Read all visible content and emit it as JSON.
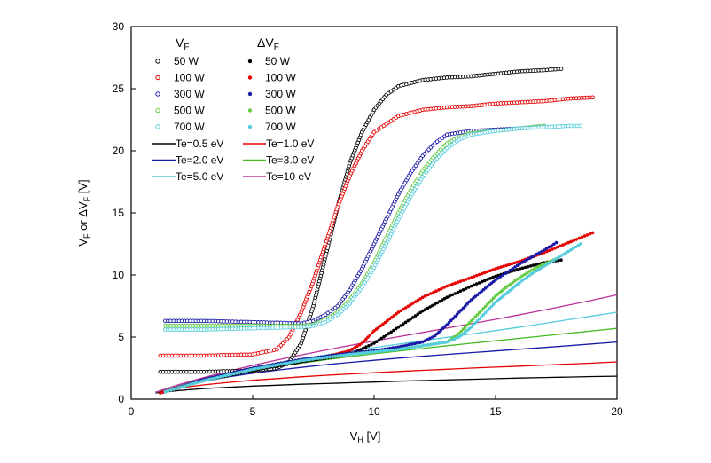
{
  "chart_data": {
    "type": "scatter",
    "title": "",
    "xlabel": {
      "main": "V",
      "sub": "H",
      "unit": " [V]"
    },
    "ylabel": {
      "p1": "V",
      "s1": "F",
      "p2": " or ",
      "p3": "ΔV",
      "s2": "F",
      "p4": " [V]"
    },
    "xlim": [
      0,
      20
    ],
    "ylim": [
      0,
      30
    ],
    "xticks": [
      "0",
      "5",
      "10",
      "15",
      "20"
    ],
    "yticks": [
      "0",
      "5",
      "10",
      "15",
      "20",
      "25",
      "30"
    ],
    "grid": false,
    "legend_placement": "top-left",
    "legend": {
      "vf_head": {
        "main": "V",
        "sub": "F"
      },
      "dvf_head": {
        "main": "ΔV",
        "sub": "F"
      }
    },
    "series": [
      {
        "name": "50 W",
        "group": "VF",
        "marker": "open-circle",
        "color": "#000000",
        "x": [
          1.2,
          3,
          5,
          6,
          6.5,
          7,
          7.5,
          8,
          8.5,
          9,
          9.5,
          10,
          10.5,
          11,
          12,
          13,
          14,
          15,
          16,
          17,
          17.7
        ],
        "y": [
          2.2,
          2.2,
          2.3,
          2.5,
          3.0,
          4.5,
          7.5,
          11.5,
          15.5,
          19.0,
          21.5,
          23.3,
          24.5,
          25.2,
          25.7,
          25.9,
          26.0,
          26.2,
          26.4,
          26.5,
          26.6
        ]
      },
      {
        "name": "100 W",
        "group": "VF",
        "marker": "open-circle",
        "color": "#e60000",
        "x": [
          1.2,
          3,
          5,
          6,
          6.5,
          7,
          7.5,
          8,
          8.5,
          9,
          9.5,
          10,
          11,
          12,
          13,
          14,
          15,
          16,
          17,
          18,
          19
        ],
        "y": [
          3.5,
          3.5,
          3.6,
          4.0,
          5.0,
          7.0,
          9.5,
          12.5,
          15.5,
          18.0,
          20.0,
          21.5,
          22.8,
          23.3,
          23.5,
          23.6,
          23.8,
          23.9,
          24.0,
          24.2,
          24.3
        ]
      },
      {
        "name": "300 W",
        "group": "VF",
        "marker": "open-circle",
        "color": "#1a1aa6",
        "x": [
          1.4,
          3,
          5,
          7,
          7.5,
          8,
          8.5,
          9,
          9.5,
          10,
          10.5,
          11,
          11.5,
          12,
          12.5,
          13,
          14,
          15,
          16,
          17
        ],
        "y": [
          6.3,
          6.3,
          6.2,
          6.1,
          6.3,
          6.8,
          7.5,
          8.8,
          10.5,
          12.5,
          14.5,
          16.5,
          18.2,
          19.6,
          20.6,
          21.3,
          21.6,
          21.7,
          21.8,
          22.0
        ]
      },
      {
        "name": "500 W",
        "group": "VF",
        "marker": "open-circle",
        "color": "#66cc44",
        "x": [
          1.4,
          3,
          5,
          7,
          7.5,
          8,
          8.5,
          9,
          9.5,
          10,
          10.5,
          11,
          11.5,
          12,
          12.5,
          13,
          13.5,
          14,
          15,
          16,
          17
        ],
        "y": [
          5.9,
          5.9,
          5.9,
          5.9,
          6.0,
          6.4,
          7.0,
          8.0,
          9.3,
          11.0,
          13.0,
          15.0,
          16.8,
          18.4,
          19.6,
          20.6,
          21.1,
          21.4,
          21.6,
          21.8,
          22.0
        ]
      },
      {
        "name": "700 W",
        "group": "VF",
        "marker": "open-circle",
        "color": "#55ccdd",
        "x": [
          1.4,
          3,
          5,
          7,
          7.5,
          8,
          8.5,
          9,
          9.5,
          10,
          10.5,
          11,
          11.5,
          12,
          12.5,
          13,
          13.5,
          14,
          15,
          16,
          17,
          18,
          18.5
        ],
        "y": [
          5.6,
          5.6,
          5.7,
          5.8,
          5.9,
          6.2,
          6.8,
          7.7,
          9.0,
          10.6,
          12.5,
          14.5,
          16.3,
          17.9,
          19.2,
          20.2,
          20.9,
          21.3,
          21.6,
          21.8,
          21.9,
          22.0,
          22.0
        ]
      },
      {
        "name": "50 W",
        "group": "dVF",
        "marker": "filled-circle",
        "color": "#000000",
        "x": [
          1.2,
          3,
          5,
          7,
          8,
          9,
          10,
          11,
          12,
          13,
          14,
          15,
          16,
          17,
          17.7
        ],
        "y": [
          0.5,
          1.5,
          2.3,
          3.0,
          3.3,
          3.6,
          4.5,
          5.8,
          7.1,
          8.2,
          9.1,
          9.9,
          10.5,
          11.0,
          11.2
        ]
      },
      {
        "name": "100 W",
        "group": "dVF",
        "marker": "filled-circle",
        "color": "#e60000",
        "x": [
          1.2,
          3,
          5,
          7,
          8,
          9,
          9.5,
          10,
          11,
          12,
          13,
          14,
          15,
          16,
          17,
          18,
          19
        ],
        "y": [
          0.5,
          1.6,
          2.5,
          3.1,
          3.4,
          3.9,
          4.5,
          5.5,
          7.0,
          8.2,
          9.1,
          9.8,
          10.5,
          11.1,
          11.8,
          12.6,
          13.4
        ]
      },
      {
        "name": "300 W",
        "group": "dVF",
        "marker": "filled-circle",
        "color": "#1a1aa6",
        "x": [
          1.4,
          3,
          5,
          7,
          9,
          10,
          11,
          12,
          12.5,
          13,
          13.5,
          14,
          14.5,
          15,
          16,
          17,
          17.5
        ],
        "y": [
          0.6,
          1.6,
          2.5,
          3.2,
          3.7,
          3.9,
          4.2,
          4.6,
          5.1,
          6.0,
          7.0,
          8.0,
          8.8,
          9.6,
          10.9,
          12.0,
          12.6
        ]
      },
      {
        "name": "500 W",
        "group": "dVF",
        "marker": "filled-circle",
        "color": "#66cc44",
        "x": [
          1.4,
          3,
          5,
          7,
          9,
          11,
          12,
          13,
          13.5,
          14,
          14.5,
          15,
          15.5,
          16,
          16.5,
          17,
          17.5
        ],
        "y": [
          0.6,
          1.5,
          2.4,
          3.1,
          3.6,
          4.0,
          4.3,
          4.6,
          5.3,
          6.3,
          7.3,
          8.3,
          9.1,
          9.8,
          10.4,
          10.9,
          11.3
        ]
      },
      {
        "name": "700 W",
        "group": "dVF",
        "marker": "filled-circle",
        "color": "#55ccdd",
        "x": [
          1.4,
          3,
          5,
          7,
          9,
          11,
          12,
          13,
          13.5,
          14,
          14.5,
          15,
          15.5,
          16,
          16.5,
          17,
          17.5,
          18,
          18.5
        ],
        "y": [
          0.6,
          1.5,
          2.4,
          3.1,
          3.6,
          4.0,
          4.3,
          4.6,
          5.0,
          5.8,
          6.8,
          7.8,
          8.6,
          9.4,
          10.1,
          10.7,
          11.3,
          11.9,
          12.5
        ]
      }
    ],
    "curves": [
      {
        "name": "Te=0.5 eV",
        "color": "#000000",
        "x": [
          1,
          2,
          3,
          4,
          5,
          6,
          7,
          8,
          9,
          10,
          11,
          12,
          13,
          14,
          15,
          16,
          17,
          18,
          19,
          20
        ],
        "y": [
          0.5,
          0.7,
          0.85,
          0.95,
          1.05,
          1.12,
          1.2,
          1.26,
          1.32,
          1.38,
          1.45,
          1.5,
          1.55,
          1.6,
          1.65,
          1.7,
          1.74,
          1.78,
          1.82,
          1.85
        ]
      },
      {
        "name": "Te=1.0 eV",
        "color": "#e60000",
        "x": [
          1,
          2,
          3,
          4,
          5,
          6,
          7,
          8,
          9,
          10,
          11,
          12,
          13,
          14,
          15,
          16,
          17,
          18,
          19,
          20
        ],
        "y": [
          0.55,
          0.9,
          1.15,
          1.35,
          1.52,
          1.66,
          1.8,
          1.92,
          2.03,
          2.13,
          2.23,
          2.32,
          2.41,
          2.5,
          2.58,
          2.66,
          2.74,
          2.82,
          2.9,
          3.0
        ]
      },
      {
        "name": "Te=2.0 eV",
        "color": "#1a1aa6",
        "x": [
          1,
          2,
          3,
          4,
          5,
          6,
          7,
          8,
          9,
          10,
          11,
          12,
          13,
          14,
          15,
          16,
          17,
          18,
          19,
          20
        ],
        "y": [
          0.55,
          1.05,
          1.45,
          1.8,
          2.08,
          2.33,
          2.56,
          2.77,
          2.96,
          3.13,
          3.3,
          3.45,
          3.6,
          3.74,
          3.88,
          4.02,
          4.16,
          4.3,
          4.45,
          4.6
        ]
      },
      {
        "name": "Te=3.0 eV",
        "color": "#44bb22",
        "x": [
          1,
          2,
          3,
          4,
          5,
          6,
          7,
          8,
          9,
          10,
          11,
          12,
          13,
          14,
          15,
          16,
          17,
          18,
          19,
          20
        ],
        "y": [
          0.55,
          1.1,
          1.55,
          1.95,
          2.3,
          2.62,
          2.9,
          3.17,
          3.42,
          3.65,
          3.87,
          4.08,
          4.3,
          4.5,
          4.7,
          4.9,
          5.1,
          5.3,
          5.5,
          5.7
        ]
      },
      {
        "name": "Te=5.0 eV",
        "color": "#55ccdd",
        "x": [
          1,
          2,
          3,
          4,
          5,
          6,
          7,
          8,
          9,
          10,
          11,
          12,
          13,
          14,
          15,
          16,
          17,
          18,
          19,
          20
        ],
        "y": [
          0.55,
          1.15,
          1.65,
          2.1,
          2.5,
          2.88,
          3.22,
          3.55,
          3.86,
          4.15,
          4.43,
          4.7,
          4.98,
          5.25,
          5.52,
          5.8,
          6.1,
          6.4,
          6.7,
          7.0
        ]
      },
      {
        "name": "Te=10 eV",
        "color": "#bb3399",
        "x": [
          1,
          2,
          3,
          4,
          5,
          6,
          7,
          8,
          9,
          10,
          11,
          12,
          13,
          14,
          15,
          16,
          17,
          18,
          19,
          20
        ],
        "y": [
          0.55,
          1.2,
          1.75,
          2.25,
          2.72,
          3.15,
          3.55,
          3.95,
          4.32,
          4.68,
          5.03,
          5.37,
          5.72,
          6.07,
          6.43,
          6.8,
          7.18,
          7.57,
          7.97,
          8.4
        ]
      }
    ]
  }
}
